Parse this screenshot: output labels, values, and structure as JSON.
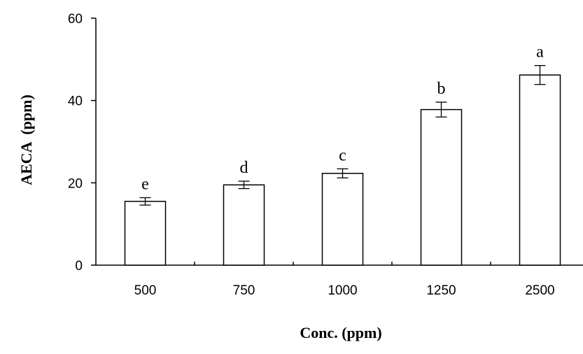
{
  "chart_data": {
    "type": "bar",
    "categories": [
      "500",
      "750",
      "1000",
      "1250",
      "2500"
    ],
    "values": [
      15.5,
      19.5,
      22.3,
      37.8,
      46.2
    ],
    "errors": [
      0.9,
      0.9,
      1.1,
      1.8,
      2.3
    ],
    "significance_letters": [
      "e",
      "d",
      "c",
      "b",
      "a"
    ],
    "title": "",
    "xlabel": "Conc. (ppm)",
    "ylabel": "AECA  (ppm)",
    "ylim": [
      0,
      60
    ],
    "yticks": [
      "0",
      "20",
      "40",
      "60"
    ],
    "grid": false,
    "legend": "none",
    "bar_fill": "#ffffff",
    "bar_stroke": "#000000"
  }
}
